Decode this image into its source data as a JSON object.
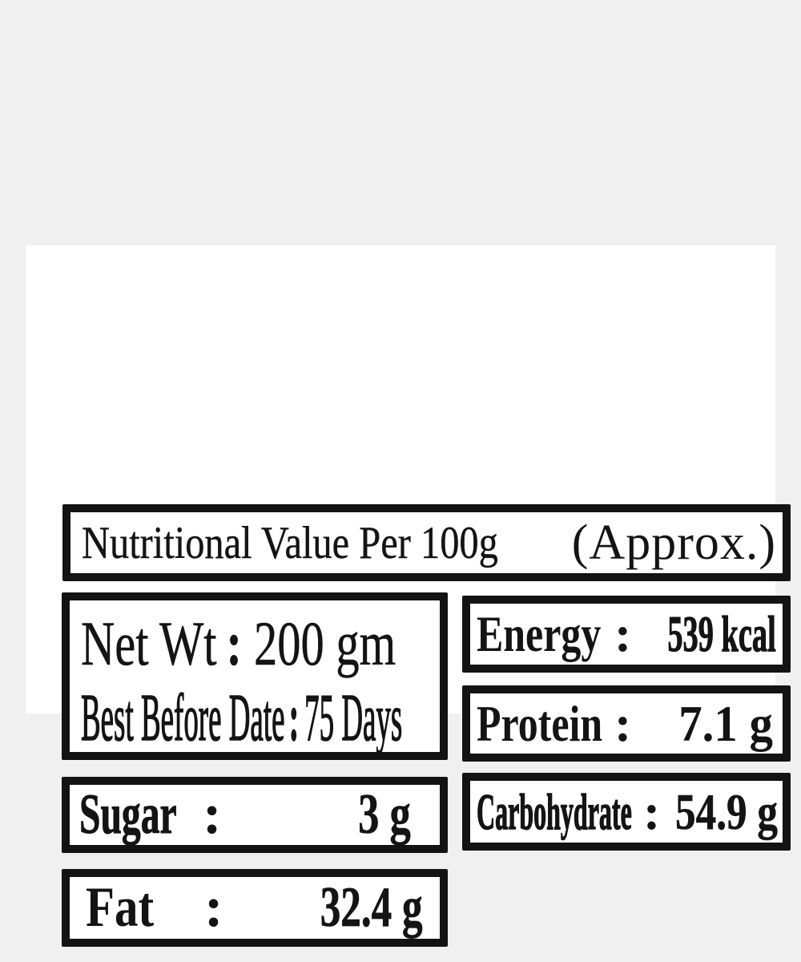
{
  "colors": {
    "page_bg": "#f0f0f0",
    "panel_bg": "#ffffff",
    "box_border": "#131313",
    "text": "#141414"
  },
  "title": {
    "main": "Nutritional Value Per 100g",
    "suffix": "(Approx.)"
  },
  "net_wt": {
    "label": "Net Wt",
    "colon": ":",
    "value": "200 gm"
  },
  "best_before": {
    "label": "Best Before Date",
    "colon": ":",
    "value": "75 Days"
  },
  "facts": {
    "energy": {
      "label": "Energy",
      "colon": ":",
      "value": "539 kcal"
    },
    "protein": {
      "label": "Protein",
      "colon": ":",
      "value": "7.1 g"
    },
    "sugar": {
      "label": "Sugar",
      "colon": ":",
      "value": "3 g"
    },
    "carbohydrate": {
      "label": "Carbohydrate",
      "colon": ":",
      "value": "54.9 g"
    },
    "fat": {
      "label": "Fat",
      "colon": ":",
      "value": "32.4 g"
    }
  }
}
